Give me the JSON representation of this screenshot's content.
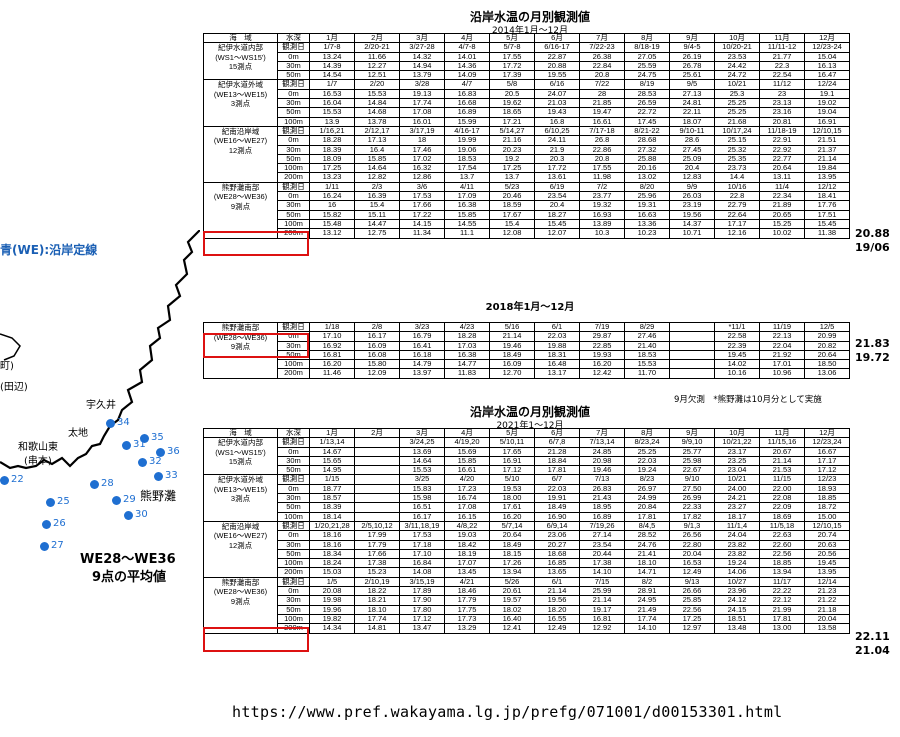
{
  "title1": "沿岸水温の月別観測値",
  "sub1": "2014年1月～12月",
  "title2": "2018年1月～12月",
  "title3": "沿岸水温の月別観測値",
  "sub3": "2021年1～12月",
  "header": [
    "海　域",
    "水深",
    "1月",
    "2月",
    "3月",
    "4月",
    "5月",
    "6月",
    "7月",
    "8月",
    "9月",
    "10月",
    "11月",
    "12月"
  ],
  "area_labels": {
    "kii_in": [
      "紀伊水道内部",
      "(WS1～WS15')",
      "15測点"
    ],
    "kii_out": [
      "紀伊水道外域",
      "(WE13～WE15)",
      "3測点"
    ],
    "kinan": [
      "紀南沿岸域",
      "(WE16～WE27)",
      "12測点"
    ],
    "kumano": [
      "熊野灘南部",
      "(WE28～WE36)",
      "9測点"
    ]
  },
  "t2014": [
    [
      "観測日",
      "1/7-8",
      "2/20-21",
      "3/27-28",
      "4/7-8",
      "5/7-8",
      "6/16-17",
      "7/22-23",
      "8/18-19",
      "9/4-5",
      "10/20-21",
      "11/11-12",
      "12/23-24"
    ],
    [
      "0m",
      "13.24",
      "11.66",
      "14.32",
      "14.01",
      "17.55",
      "22.87",
      "26.38",
      "27.05",
      "26.19",
      "23.53",
      "21.77",
      "15.04"
    ],
    [
      "30m",
      "14.39",
      "12.27",
      "14.94",
      "14.36",
      "17.72",
      "20.88",
      "22.84",
      "25.59",
      "26.78",
      "24.42",
      "22.3",
      "16.13"
    ],
    [
      "50m",
      "14.54",
      "12.51",
      "13.79",
      "14.09",
      "17.39",
      "19.55",
      "20.8",
      "24.75",
      "25.61",
      "24.72",
      "22.54",
      "16.47"
    ],
    [
      "観測日",
      "1/7",
      "2/20",
      "3/28",
      "4/7",
      "5/8",
      "6/16",
      "7/22",
      "8/19",
      "9/5",
      "10/21",
      "11/12",
      "12/24"
    ],
    [
      "0m",
      "16.53",
      "15.53",
      "19.13",
      "16.83",
      "20.5",
      "24.07",
      "28",
      "28.53",
      "27.13",
      "25.3",
      "23",
      "19.1"
    ],
    [
      "30m",
      "16.04",
      "14.84",
      "17.74",
      "16.68",
      "19.62",
      "21.03",
      "21.85",
      "26.59",
      "24.81",
      "25.25",
      "23.13",
      "19.02"
    ],
    [
      "50m",
      "15.53",
      "14.68",
      "17.08",
      "16.89",
      "18.65",
      "19.43",
      "19.47",
      "22.72",
      "22.11",
      "25.25",
      "23.16",
      "19.04"
    ],
    [
      "100m",
      "13.9",
      "13.78",
      "16.01",
      "15.99",
      "17.21",
      "16.8",
      "16.61",
      "17.45",
      "18.07",
      "21.68",
      "20.81",
      "16.91"
    ],
    [
      "観測日",
      "1/16,21",
      "2/12,17",
      "3/17,19",
      "4/16-17",
      "5/14,27",
      "6/10,25",
      "7/17-18",
      "8/21-22",
      "9/10-11",
      "10/17,24",
      "11/18-19",
      "12/10,15"
    ],
    [
      "0m",
      "18.28",
      "17.13",
      "18",
      "19.99",
      "21.16",
      "24.11",
      "26.8",
      "28.68",
      "28.6",
      "25.15",
      "22.91",
      "21.51"
    ],
    [
      "30m",
      "18.39",
      "16.4",
      "17.46",
      "19.06",
      "20.23",
      "21.9",
      "22.86",
      "27.32",
      "27.45",
      "25.32",
      "22.92",
      "21.37"
    ],
    [
      "50m",
      "18.09",
      "15.85",
      "17.02",
      "18.53",
      "19.2",
      "20.3",
      "20.8",
      "25.88",
      "25.09",
      "25.35",
      "22.77",
      "21.14"
    ],
    [
      "100m",
      "17.25",
      "14.64",
      "16.32",
      "17.54",
      "17.25",
      "17.72",
      "17.55",
      "20.16",
      "20.4",
      "23.73",
      "20.64",
      "19.84"
    ],
    [
      "200m",
      "13.23",
      "12.82",
      "12.86",
      "13.7",
      "13.7",
      "13.61",
      "11.98",
      "13.02",
      "12.83",
      "14.4",
      "13.11",
      "13.95"
    ],
    [
      "観測日",
      "1/11",
      "2/3",
      "3/6",
      "4/11",
      "5/23",
      "6/19",
      "7/2",
      "8/20",
      "9/9",
      "10/16",
      "11/4",
      "12/12"
    ],
    [
      "0m",
      "16.24",
      "16.39",
      "17.53",
      "17.09",
      "20.46",
      "23.54",
      "23.77",
      "25.96",
      "26.03",
      "22.8",
      "22.34",
      "18.41"
    ],
    [
      "30m",
      "16",
      "15.4",
      "17.66",
      "16.38",
      "18.59",
      "20.4",
      "19.32",
      "19.31",
      "23.19",
      "22.79",
      "21.89",
      "17.76"
    ],
    [
      "50m",
      "15.82",
      "15.11",
      "17.22",
      "15.85",
      "17.67",
      "18.27",
      "16.93",
      "16.63",
      "19.56",
      "22.64",
      "20.65",
      "17.51"
    ],
    [
      "100m",
      "15.48",
      "14.47",
      "14.15",
      "14.55",
      "15.4",
      "15.45",
      "13.89",
      "13.36",
      "14.37",
      "17.17",
      "15.25",
      "15.45"
    ],
    [
      "200m",
      "13.12",
      "12.75",
      "11.34",
      "11.1",
      "12.08",
      "12.07",
      "10.3",
      "10.23",
      "10.71",
      "12.16",
      "10.02",
      "11.38"
    ]
  ],
  "t2018": [
    [
      "観測日",
      "1/18",
      "2/8",
      "3/23",
      "4/23",
      "5/16",
      "6/1",
      "7/19",
      "8/29",
      "",
      "*11/1",
      "11/19",
      "12/5"
    ],
    [
      "0m",
      "17.10",
      "16.17",
      "16.79",
      "18.28",
      "21.14",
      "22.03",
      "29.87",
      "27.46",
      "",
      "22.58",
      "22.13",
      "20.99"
    ],
    [
      "30m",
      "16.92",
      "16.09",
      "16.41",
      "17.03",
      "19.46",
      "19.88",
      "22.85",
      "21.40",
      "",
      "22.39",
      "22.04",
      "20.82"
    ],
    [
      "50m",
      "16.81",
      "16.08",
      "16.18",
      "16.38",
      "18.49",
      "18.31",
      "19.93",
      "18.53",
      "",
      "19.45",
      "21.92",
      "20.64"
    ],
    [
      "100m",
      "16.20",
      "15.80",
      "14.79",
      "14.77",
      "16.09",
      "16.48",
      "16.20",
      "15.53",
      "",
      "14.02",
      "17.01",
      "18.50"
    ],
    [
      "200m",
      "11.46",
      "12.09",
      "13.97",
      "11.83",
      "12.70",
      "13.17",
      "12.42",
      "11.70",
      "",
      "10.16",
      "10.96",
      "13.06"
    ]
  ],
  "t2021": [
    [
      "観測日",
      "1/13,14",
      "",
      "3/24,25",
      "4/19,20",
      "5/10,11",
      "6/7,8",
      "7/13,14",
      "8/23,24",
      "9/9,10",
      "10/21,22",
      "11/15,16",
      "12/23,24"
    ],
    [
      "0m",
      "14.67",
      "",
      "13.69",
      "15.69",
      "17.65",
      "21.28",
      "24.85",
      "25.25",
      "25.77",
      "23.17",
      "20.67",
      "16.67"
    ],
    [
      "30m",
      "15.65",
      "",
      "14.64",
      "15.85",
      "16.91",
      "18.84",
      "20.98",
      "22.03",
      "25.98",
      "23.25",
      "21.14",
      "17.17"
    ],
    [
      "50m",
      "14.95",
      "",
      "15.53",
      "16.61",
      "17.12",
      "17.81",
      "19.46",
      "19.24",
      "22.67",
      "23.04",
      "21.53",
      "17.12"
    ],
    [
      "観測日",
      "1/15",
      "",
      "3/25",
      "4/20",
      "5/10",
      "6/7",
      "7/13",
      "8/23",
      "9/10",
      "10/21",
      "11/15",
      "12/23"
    ],
    [
      "0m",
      "18.77",
      "",
      "15.83",
      "17.23",
      "19.53",
      "22.03",
      "26.83",
      "26.97",
      "27.50",
      "24.00",
      "22.00",
      "18.93"
    ],
    [
      "30m",
      "18.57",
      "",
      "15.98",
      "16.74",
      "18.00",
      "19.91",
      "21.43",
      "24.99",
      "26.99",
      "24.21",
      "22.08",
      "18.85"
    ],
    [
      "50m",
      "18.39",
      "",
      "16.51",
      "17.08",
      "17.61",
      "18.49",
      "18.95",
      "20.84",
      "22.33",
      "23.27",
      "22.09",
      "18.72"
    ],
    [
      "100m",
      "18.14",
      "",
      "16.17",
      "16.15",
      "16.20",
      "16.90",
      "16.89",
      "17.81",
      "17.82",
      "18.17",
      "18.69",
      "15.00"
    ],
    [
      "観測日",
      "1/20,21,28",
      "2/5,10,12",
      "3/11,18,19",
      "4/8,22",
      "5/7,14",
      "6/9,14",
      "7/19,26",
      "8/4,5",
      "9/1,3",
      "11/1,4",
      "11/5,18",
      "12/10,15"
    ],
    [
      "0m",
      "18.16",
      "17.99",
      "17.53",
      "19.03",
      "20.64",
      "23.06",
      "27.14",
      "28.52",
      "26.56",
      "24.04",
      "22.63",
      "20.74"
    ],
    [
      "30m",
      "18.16",
      "17.79",
      "17.18",
      "18.42",
      "18.49",
      "20.27",
      "23.54",
      "24.76",
      "22.80",
      "23.82",
      "22.60",
      "20.63"
    ],
    [
      "50m",
      "18.34",
      "17.66",
      "17.10",
      "18.19",
      "18.15",
      "18.68",
      "20.44",
      "21.41",
      "20.04",
      "23.82",
      "22.56",
      "20.56"
    ],
    [
      "100m",
      "18.24",
      "17.38",
      "16.84",
      "17.07",
      "17.26",
      "16.85",
      "17.38",
      "18.10",
      "16.53",
      "19.24",
      "18.85",
      "19.45"
    ],
    [
      "200m",
      "15.03",
      "15.23",
      "14.08",
      "13.45",
      "13.94",
      "13.65",
      "14.10",
      "14.71",
      "12.49",
      "14.06",
      "13.94",
      "13.95"
    ],
    [
      "観測日",
      "1/5",
      "2/10,19",
      "3/15,19",
      "4/21",
      "5/26",
      "6/1",
      "7/15",
      "8/2",
      "9/13",
      "10/27",
      "11/17",
      "12/14"
    ],
    [
      "0m",
      "20.08",
      "18.22",
      "17.89",
      "18.46",
      "20.61",
      "21.14",
      "25.99",
      "28.91",
      "26.66",
      "23.96",
      "22.22",
      "21.23"
    ],
    [
      "30m",
      "19.98",
      "18.21",
      "17.90",
      "17.79",
      "19.57",
      "19.56",
      "21.14",
      "24.95",
      "25.85",
      "24.12",
      "22.12",
      "21.22"
    ],
    [
      "50m",
      "19.96",
      "18.10",
      "17.80",
      "17.75",
      "18.02",
      "18.20",
      "19.17",
      "21.49",
      "22.56",
      "24.15",
      "21.99",
      "21.18"
    ],
    [
      "100m",
      "19.82",
      "17.74",
      "17.12",
      "17.73",
      "16.40",
      "16.55",
      "16.81",
      "17.74",
      "17.25",
      "18.51",
      "17.81",
      "20.04"
    ],
    [
      "200m",
      "14.34",
      "14.81",
      "13.47",
      "13.29",
      "12.41",
      "12.49",
      "12.92",
      "14.10",
      "12.97",
      "13.48",
      "13.00",
      "13.58"
    ]
  ],
  "side_values": {
    "v2014": [
      "20.88",
      "19/06"
    ],
    "v2018": [
      "21.83",
      "19.72"
    ],
    "v2021": [
      "22.11",
      "21.04"
    ]
  },
  "note2018": "9月欠測　*熊野灘は10月分として実施",
  "map": {
    "legend": "青(WE):沿岸定線",
    "town1": "町)",
    "town2": "(田辺)",
    "kusui": "宇久井",
    "taichi": "太地",
    "wakayama": "和歌山東",
    "kushimoto": "(串本)",
    "kumanonada": "熊野灘",
    "we_label1": "WE28～WE36",
    "we_label2": "9点の平均値",
    "stations": [
      "34",
      "35",
      "36",
      "31",
      "32",
      "33",
      "28",
      "29",
      "30",
      "25",
      "26",
      "27",
      "22"
    ],
    "dot_color": "#1f6fd1"
  },
  "url": "https://www.pref.wakayama.lg.jp/prefg/071001/d00153301.html"
}
